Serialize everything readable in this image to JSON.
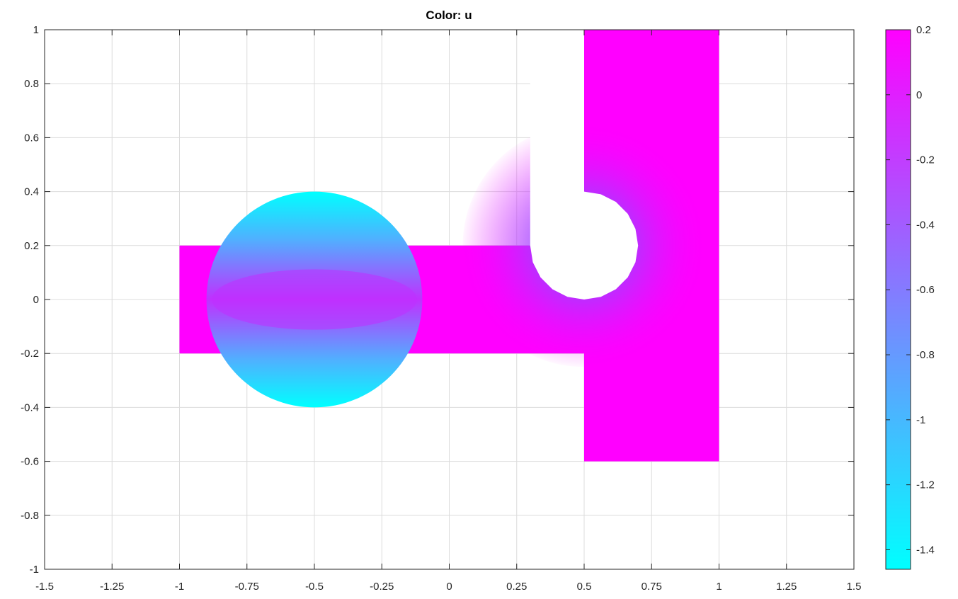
{
  "chart_data": {
    "type": "heatmap",
    "title": "Color: u",
    "xlabel": "",
    "ylabel": "",
    "xlim": [
      -1.5,
      1.5
    ],
    "ylim": [
      -1,
      1
    ],
    "grid": true,
    "x_ticks": [
      "-1.5",
      "-1.25",
      "-1",
      "-0.75",
      "-0.5",
      "-0.25",
      "0",
      "0.25",
      "0.5",
      "0.75",
      "1",
      "1.25",
      "1.5"
    ],
    "x_tick_values": [
      -1.5,
      -1.25,
      -1,
      -0.75,
      -0.5,
      -0.25,
      0,
      0.25,
      0.5,
      0.75,
      1,
      1.25,
      1.5
    ],
    "y_ticks": [
      "-1",
      "-0.8",
      "-0.6",
      "-0.4",
      "-0.2",
      "0",
      "0.2",
      "0.4",
      "0.6",
      "0.8",
      "1"
    ],
    "y_tick_values": [
      -1,
      -0.8,
      -0.6,
      -0.4,
      -0.2,
      0,
      0.2,
      0.4,
      0.6,
      0.8,
      1
    ],
    "colorbar": {
      "colormap": "cool",
      "range": [
        -1.46,
        0.2
      ],
      "low_color": "#00ffff",
      "high_color": "#ff00ff",
      "ticks": [
        "0.2",
        "0",
        "-0.2",
        "-0.4",
        "-0.6",
        "-0.8",
        "-1",
        "-1.2",
        "-1.4"
      ],
      "tick_values": [
        0.2,
        0,
        -0.2,
        -0.4,
        -0.6,
        -0.8,
        -1,
        -1.2,
        -1.4
      ]
    },
    "domain": {
      "left_bar": {
        "x": [
          -1,
          -0.16
        ],
        "y": [
          -0.2,
          0.2
        ]
      },
      "circle": {
        "center": [
          -0.5,
          0
        ],
        "radius": 0.4
      },
      "channel": {
        "x": [
          -0.16,
          0.5
        ],
        "y": [
          -0.2,
          0.2
        ]
      },
      "right_block": {
        "x": [
          0.5,
          1
        ],
        "y": [
          -0.6,
          1
        ]
      },
      "hole": {
        "center": [
          0.5,
          0.2
        ],
        "radius": 0.2,
        "segments": 10
      }
    },
    "field_description": {
      "max_value_region": "channel and right block (~0.2)",
      "min_value_region": "top and bottom of circle (~-1.46)"
    }
  }
}
